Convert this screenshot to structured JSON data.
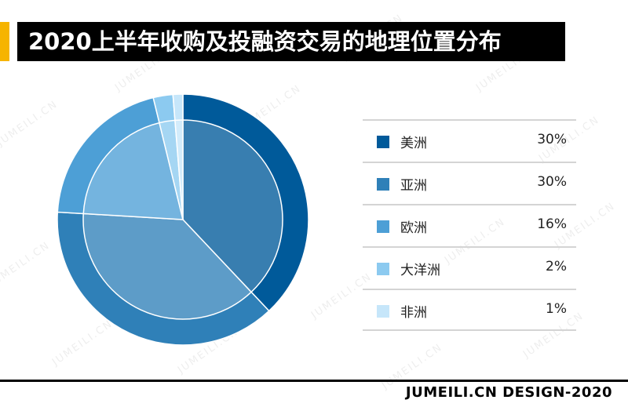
{
  "header": {
    "title": "2020上半年收购及投融资交易的地理位置分布"
  },
  "watermark": {
    "text": "JUMEILI.CN"
  },
  "footer": {
    "text": "JUMEILI.CN DESIGN-2020"
  },
  "colors": {
    "accent": "#f6b400",
    "title_bg": "#000000",
    "slices": [
      "#005a9a",
      "#2f80b8",
      "#4d9fd6",
      "#8ccaf0",
      "#c6e6fa"
    ]
  },
  "chart_data": {
    "type": "pie",
    "title": "2020上半年收购及投融资交易的地理位置分布",
    "labels": [
      "美洲",
      "亚洲",
      "欧洲",
      "大洋洲",
      "非洲"
    ],
    "values": [
      30,
      30,
      16,
      2,
      1
    ],
    "value_labels": [
      "30%",
      "30%",
      "16%",
      "2%",
      "1%"
    ],
    "legend_position": "right"
  }
}
